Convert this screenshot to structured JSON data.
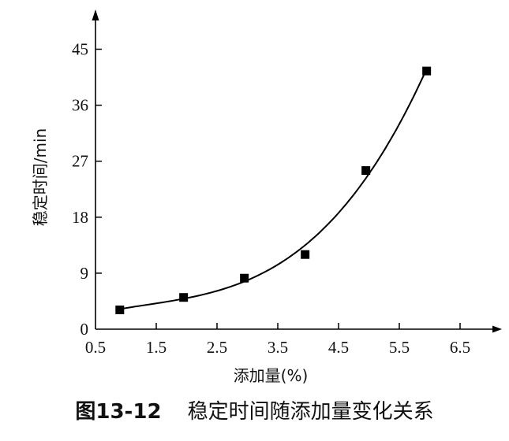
{
  "chart_data": {
    "type": "scatter",
    "xlabel": "添加量(%)",
    "ylabel": "稳定时间/min",
    "xlim": [
      0.5,
      6.8
    ],
    "ylim": [
      0,
      47
    ],
    "x_ticks": [
      "0.5",
      "1.5",
      "2.5",
      "3.5",
      "4.5",
      "5.5",
      "6.5"
    ],
    "y_ticks": [
      "0",
      "9",
      "18",
      "27",
      "36",
      "45"
    ],
    "x": [
      0.9,
      1.95,
      2.95,
      3.95,
      4.95,
      5.95
    ],
    "y": [
      3.1,
      5.1,
      8.2,
      12.0,
      25.5,
      41.5
    ],
    "marker": "square",
    "trend_line": "smooth fitted curve",
    "grid": false,
    "colors": {
      "line": "#000000",
      "markers": "#000000"
    }
  },
  "caption": {
    "number": "图13-12",
    "text": "稳定时间随添加量变化关系"
  }
}
